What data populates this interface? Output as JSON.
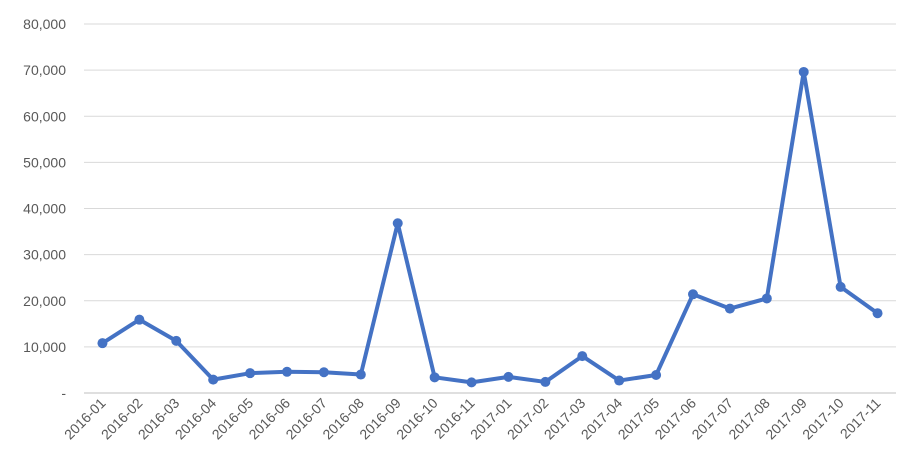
{
  "chart_data": {
    "type": "line",
    "title": "",
    "xlabel": "",
    "ylabel": "",
    "ylim": [
      0,
      80000
    ],
    "yticks": [
      0,
      10000,
      20000,
      30000,
      40000,
      50000,
      60000,
      70000,
      80000
    ],
    "ytick_labels": [
      "-",
      "10,000",
      "20,000",
      "30,000",
      "40,000",
      "50,000",
      "60,000",
      "70,000",
      "80,000"
    ],
    "grid": true,
    "legend": "none",
    "color": "#4472c4",
    "categories": [
      "2016-01",
      "2016-02",
      "2016-03",
      "2016-04",
      "2016-05",
      "2016-06",
      "2016-07",
      "2016-08",
      "2016-09",
      "2016-10",
      "2016-11",
      "2017-01",
      "2017-02",
      "2017-03",
      "2017-04",
      "2017-05",
      "2017-06",
      "2017-07",
      "2017-08",
      "2017-09",
      "2017-10",
      "2017-11"
    ],
    "series": [
      {
        "values": [
          10800,
          15900,
          11300,
          2900,
          4300,
          4600,
          4500,
          4000,
          36800,
          3400,
          2300,
          3500,
          2400,
          8000,
          2700,
          3900,
          21400,
          18300,
          20500,
          69600,
          23000,
          17300
        ]
      }
    ]
  }
}
